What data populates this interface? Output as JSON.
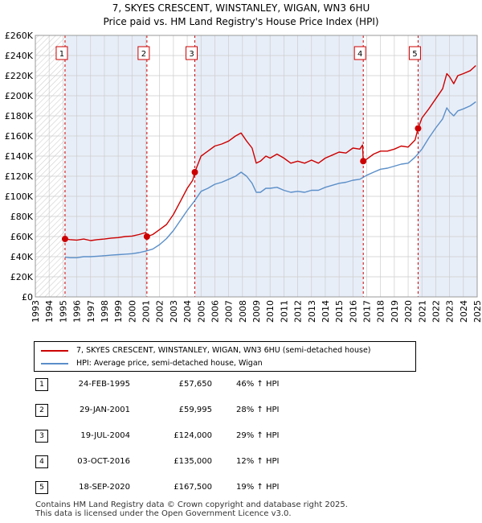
{
  "title_line1": "7, SKYES CRESCENT, WINSTANLEY, WIGAN, WN3 6HU",
  "title_line2": "Price paid vs. HM Land Registry's House Price Index (HPI)",
  "legend": {
    "property": "7, SKYES CRESCENT, WINSTANLEY, WIGAN, WN3 6HU (semi-detached house)",
    "hpi": "HPI: Average price, semi-detached house, Wigan"
  },
  "colors": {
    "property": "#cc0000",
    "hpi": "#5b8fc9",
    "band": "#e8eef8",
    "marker_line": "#cc0000",
    "grid": "#cccccc"
  },
  "sales": [
    {
      "num": "1",
      "date": "24-FEB-1995",
      "price": "£57,650",
      "hpi": "46% ↑ HPI"
    },
    {
      "num": "2",
      "date": "29-JAN-2001",
      "price": "£59,995",
      "hpi": "28% ↑ HPI"
    },
    {
      "num": "3",
      "date": "19-JUL-2004",
      "price": "£124,000",
      "hpi": "29% ↑ HPI"
    },
    {
      "num": "4",
      "date": "03-OCT-2016",
      "price": "£135,000",
      "hpi": "12% ↑ HPI"
    },
    {
      "num": "5",
      "date": "18-SEP-2020",
      "price": "£167,500",
      "hpi": "19% ↑ HPI"
    }
  ],
  "footer_line1": "Contains HM Land Registry data © Crown copyright and database right 2025.",
  "footer_line2": "This data is licensed under the Open Government Licence v3.0.",
  "chart_data": {
    "type": "line",
    "xlim": [
      1993,
      2025
    ],
    "ylim": [
      0,
      260000
    ],
    "y_ticks": [
      0,
      20000,
      40000,
      60000,
      80000,
      100000,
      120000,
      140000,
      160000,
      180000,
      200000,
      220000,
      240000,
      260000
    ],
    "y_tick_labels": [
      "£0",
      "£20K",
      "£40K",
      "£60K",
      "£80K",
      "£100K",
      "£120K",
      "£140K",
      "£160K",
      "£180K",
      "£200K",
      "£220K",
      "£240K",
      "£260K"
    ],
    "x_ticks": [
      1993,
      1994,
      1995,
      1996,
      1997,
      1998,
      1999,
      2000,
      2001,
      2002,
      2003,
      2004,
      2005,
      2006,
      2007,
      2008,
      2009,
      2010,
      2011,
      2012,
      2013,
      2014,
      2015,
      2016,
      2017,
      2018,
      2019,
      2020,
      2021,
      2022,
      2023,
      2024,
      2025
    ],
    "grid": true,
    "legend_position": "bottom",
    "sale_points": [
      {
        "label": "1",
        "x": 1995.15,
        "y": 57650
      },
      {
        "label": "2",
        "x": 2001.08,
        "y": 59995
      },
      {
        "label": "3",
        "x": 2004.55,
        "y": 124000
      },
      {
        "label": "4",
        "x": 2016.75,
        "y": 135000
      },
      {
        "label": "5",
        "x": 2020.72,
        "y": 167500
      }
    ],
    "series": [
      {
        "name": "7, SKYES CRESCENT, WINSTANLEY, WIGAN, WN3 6HU (semi-detached house)",
        "x": [
          1995.15,
          1995.5,
          1996,
          1996.5,
          1997,
          1997.5,
          1998,
          1998.5,
          1999,
          1999.5,
          2000,
          2000.5,
          2001.0,
          2001.08,
          2001.5,
          2002,
          2002.5,
          2003,
          2003.5,
          2004,
          2004.4,
          2004.55,
          2005,
          2005.5,
          2006,
          2006.5,
          2007,
          2007.5,
          2007.9,
          2008.3,
          2008.7,
          2009.0,
          2009.3,
          2009.7,
          2010,
          2010.5,
          2011,
          2011.5,
          2012,
          2012.5,
          2013,
          2013.5,
          2014,
          2014.5,
          2015,
          2015.5,
          2016,
          2016.5,
          2016.7,
          2016.75,
          2017,
          2017.5,
          2018,
          2018.5,
          2019,
          2019.5,
          2020,
          2020.5,
          2020.72,
          2021,
          2021.5,
          2022,
          2022.5,
          2022.8,
          2023,
          2023.3,
          2023.6,
          2024,
          2024.5,
          2024.9
        ],
        "y": [
          57650,
          57000,
          56500,
          57500,
          56000,
          57000,
          57500,
          58500,
          59000,
          60000,
          60500,
          62000,
          64000,
          59995,
          62000,
          67000,
          72000,
          82000,
          95000,
          108000,
          116000,
          124000,
          140000,
          145000,
          150000,
          152000,
          155000,
          160000,
          163000,
          155000,
          148000,
          133000,
          135000,
          140000,
          138000,
          142000,
          138000,
          133000,
          135000,
          133000,
          136000,
          133000,
          138000,
          141000,
          144000,
          143000,
          148000,
          147000,
          151000,
          135000,
          137000,
          142000,
          145000,
          145000,
          147000,
          150000,
          149000,
          156000,
          167500,
          178000,
          187000,
          197000,
          207000,
          222000,
          219000,
          212000,
          220000,
          222000,
          225000,
          230000
        ]
      },
      {
        "name": "HPI: Average price, semi-detached house, Wigan",
        "x": [
          1995.15,
          1995.5,
          1996,
          1996.5,
          1997,
          1997.5,
          1998,
          1998.5,
          1999,
          1999.5,
          2000,
          2000.5,
          2001,
          2001.5,
          2002,
          2002.5,
          2003,
          2003.5,
          2004,
          2004.5,
          2005,
          2005.5,
          2006,
          2006.5,
          2007,
          2007.5,
          2007.9,
          2008.3,
          2008.7,
          2009.0,
          2009.3,
          2009.7,
          2010,
          2010.5,
          2011,
          2011.5,
          2012,
          2012.5,
          2013,
          2013.5,
          2014,
          2014.5,
          2015,
          2015.5,
          2016,
          2016.5,
          2017,
          2017.5,
          2018,
          2018.5,
          2019,
          2019.5,
          2020,
          2020.5,
          2021,
          2021.5,
          2022,
          2022.5,
          2022.8,
          2023,
          2023.3,
          2023.6,
          2024,
          2024.5,
          2024.9
        ],
        "y": [
          39500,
          39000,
          39000,
          40000,
          40000,
          40500,
          41000,
          41500,
          42000,
          42500,
          43000,
          44000,
          45500,
          47500,
          52000,
          58000,
          66000,
          76000,
          86000,
          95000,
          105000,
          108000,
          112000,
          114000,
          117000,
          120000,
          124000,
          120000,
          113000,
          104000,
          104000,
          108000,
          108000,
          109000,
          106000,
          104000,
          105000,
          104000,
          106000,
          106000,
          109000,
          111000,
          113000,
          114000,
          116000,
          117000,
          121000,
          124000,
          127000,
          128000,
          130000,
          132000,
          133000,
          139000,
          147000,
          158000,
          168000,
          177000,
          188000,
          184000,
          180000,
          185000,
          187000,
          190000,
          194000
        ]
      }
    ]
  }
}
